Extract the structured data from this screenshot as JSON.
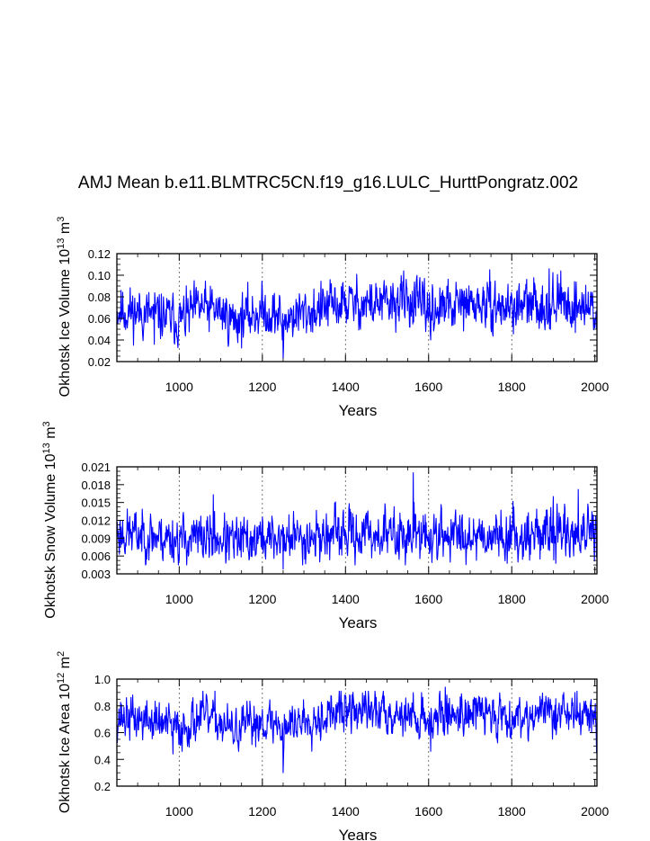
{
  "title": "AMJ Mean b.e11.BLMTRC5CN.f19_g16.LULC_HurttPongratz.002",
  "series_color": "#0000ff",
  "chart_data": [
    {
      "type": "line",
      "ylabel_text": "Okhotsk Ice Volume 10",
      "ylabel_exp": "13",
      "ylabel_unit": "m",
      "ylabel_unit_exp": "3",
      "xlabel": "Years",
      "xlim": [
        850,
        2005
      ],
      "ylim": [
        0.02,
        0.12
      ],
      "xticks": [
        1000,
        1200,
        1400,
        1600,
        1800,
        2000
      ],
      "yticks": [
        "0.02",
        "0.04",
        "0.06",
        "0.08",
        "0.10",
        "0.12"
      ],
      "ytick_values": [
        0.02,
        0.04,
        0.06,
        0.08,
        0.1,
        0.12
      ],
      "gridlines_x": [
        1000,
        1200,
        1400,
        1600,
        1800
      ],
      "mean_profile": [
        [
          850,
          0.068
        ],
        [
          950,
          0.063
        ],
        [
          1000,
          0.058
        ],
        [
          1050,
          0.07
        ],
        [
          1100,
          0.066
        ],
        [
          1130,
          0.058
        ],
        [
          1200,
          0.067
        ],
        [
          1250,
          0.06
        ],
        [
          1300,
          0.065
        ],
        [
          1400,
          0.074
        ],
        [
          1500,
          0.073
        ],
        [
          1550,
          0.077
        ],
        [
          1600,
          0.068
        ],
        [
          1650,
          0.07
        ],
        [
          1700,
          0.073
        ],
        [
          1800,
          0.07
        ],
        [
          1900,
          0.074
        ],
        [
          2005,
          0.07
        ]
      ],
      "noise": 0.0105,
      "clip": [
        0.03,
        0.108
      ],
      "extremes": [
        [
          1250,
          0.023
        ],
        [
          1251,
          0.033
        ],
        [
          1248,
          0.04
        ],
        [
          940,
          0.036
        ],
        [
          1590,
          0.097
        ],
        [
          1605,
          0.04
        ],
        [
          1540,
          0.104
        ],
        [
          1890,
          0.106
        ],
        [
          1918,
          0.104
        ],
        [
          2004,
          0.05
        ]
      ],
      "seed": 11
    },
    {
      "type": "line",
      "ylabel_text": "Okhotsk Snow Volume 10",
      "ylabel_exp": "13",
      "ylabel_unit": "m",
      "ylabel_unit_exp": "3",
      "xlabel": "Years",
      "xlim": [
        850,
        2005
      ],
      "ylim": [
        0.003,
        0.021
      ],
      "xticks": [
        1000,
        1200,
        1400,
        1600,
        1800,
        2000
      ],
      "yticks": [
        "0.003",
        "0.006",
        "0.009",
        "0.012",
        "0.015",
        "0.018",
        "0.021"
      ],
      "ytick_values": [
        0.003,
        0.006,
        0.009,
        0.012,
        0.015,
        0.018,
        0.021
      ],
      "gridlines_x": [
        1000,
        1200,
        1400,
        1600,
        1800
      ],
      "mean_profile": [
        [
          850,
          0.01
        ],
        [
          950,
          0.0093
        ],
        [
          1000,
          0.0088
        ],
        [
          1100,
          0.009
        ],
        [
          1130,
          0.0082
        ],
        [
          1200,
          0.009
        ],
        [
          1300,
          0.0092
        ],
        [
          1400,
          0.0096
        ],
        [
          1500,
          0.0097
        ],
        [
          1600,
          0.0092
        ],
        [
          1700,
          0.0098
        ],
        [
          1800,
          0.0094
        ],
        [
          1900,
          0.01
        ],
        [
          2005,
          0.0094
        ]
      ],
      "noise": 0.0019,
      "clip": [
        0.0045,
        0.0165
      ],
      "extremes": [
        [
          1563,
          0.02
        ],
        [
          1565,
          0.015
        ],
        [
          1900,
          0.016
        ],
        [
          1960,
          0.0172
        ],
        [
          1250,
          0.0038
        ],
        [
          1082,
          0.0163
        ],
        [
          2004,
          0.0058
        ]
      ],
      "seed": 23
    },
    {
      "type": "line",
      "ylabel_text": "Okhotsk Ice Area 10",
      "ylabel_exp": "12",
      "ylabel_unit": "m",
      "ylabel_unit_exp": "2",
      "xlabel": "Years",
      "xlim": [
        850,
        2005
      ],
      "ylim": [
        0.2,
        1.0
      ],
      "xticks": [
        1000,
        1200,
        1400,
        1600,
        1800,
        2000
      ],
      "yticks": [
        "0.2",
        "0.4",
        "0.6",
        "0.8",
        "1.0"
      ],
      "ytick_values": [
        0.2,
        0.4,
        0.6,
        0.8,
        1.0
      ],
      "gridlines_x": [
        1000,
        1200,
        1400,
        1600,
        1800
      ],
      "mean_profile": [
        [
          850,
          0.72
        ],
        [
          950,
          0.68
        ],
        [
          1000,
          0.62
        ],
        [
          1050,
          0.72
        ],
        [
          1100,
          0.68
        ],
        [
          1130,
          0.6
        ],
        [
          1200,
          0.7
        ],
        [
          1250,
          0.64
        ],
        [
          1300,
          0.7
        ],
        [
          1400,
          0.76
        ],
        [
          1500,
          0.76
        ],
        [
          1600,
          0.7
        ],
        [
          1650,
          0.74
        ],
        [
          1700,
          0.76
        ],
        [
          1800,
          0.72
        ],
        [
          1900,
          0.76
        ],
        [
          2005,
          0.72
        ]
      ],
      "noise": 0.075,
      "clip": [
        0.46,
        0.91
      ],
      "extremes": [
        [
          1250,
          0.3
        ],
        [
          1251,
          0.42
        ],
        [
          1640,
          0.94
        ],
        [
          1925,
          0.9
        ],
        [
          2004,
          0.45
        ],
        [
          1605,
          0.46
        ],
        [
          985,
          0.44
        ]
      ],
      "seed": 37
    }
  ]
}
